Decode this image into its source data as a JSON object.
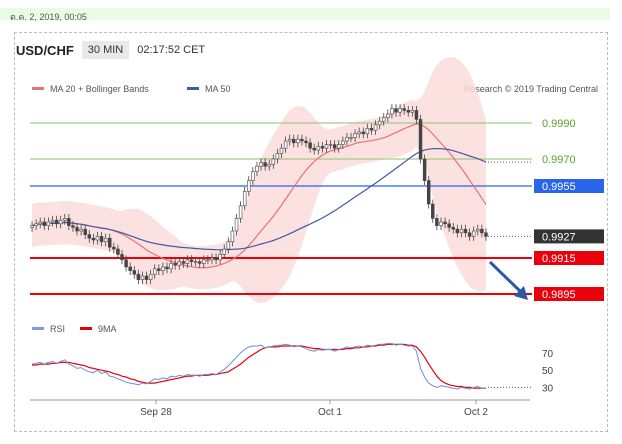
{
  "header": {
    "timestamp": "ต.ค. 2, 2019, 00:05",
    "pair": "USD/CHF",
    "interval": "30 MIN",
    "clock": "02:17:52 CET"
  },
  "legend": {
    "ma20": "MA 20 + Bollinger Bands",
    "ma50": "MA 50",
    "credit": "Research © 2019 Trading Central",
    "rsi": "RSI",
    "rsi_ma": "9MA"
  },
  "colors": {
    "candle": "#444444",
    "ma20": "#e57373",
    "ma50": "#3f5aa8",
    "bands": "#fcdcdc",
    "green": "#8cc26b",
    "blue": "#2965e8",
    "red": "#e8000a",
    "dark": "#333333",
    "arrow": "#2b5aa5"
  },
  "chart_data": {
    "type": "candlestick",
    "x_ticks": [
      "Sep 28",
      "Oct 1",
      "Oct 2"
    ],
    "y_range": [
      0.9885,
      1.0
    ],
    "levels": [
      {
        "value": 0.999,
        "label": "0.9990",
        "style": "green"
      },
      {
        "value": 0.997,
        "label": "0.9970",
        "style": "green"
      },
      {
        "value": 0.9955,
        "label": "0.9955",
        "style": "blue"
      },
      {
        "value": 0.9927,
        "label": "0.9927",
        "style": "current"
      },
      {
        "value": 0.9915,
        "label": "0.9915",
        "style": "red"
      },
      {
        "value": 0.9895,
        "label": "0.9895",
        "style": "red"
      }
    ],
    "close": [
      0.9933,
      0.9934,
      0.9935,
      0.9933,
      0.9935,
      0.9936,
      0.9934,
      0.9936,
      0.9937,
      0.9933,
      0.9932,
      0.993,
      0.9931,
      0.9928,
      0.9926,
      0.9925,
      0.9927,
      0.9924,
      0.9926,
      0.9921,
      0.992,
      0.9917,
      0.9914,
      0.991,
      0.9908,
      0.9906,
      0.9903,
      0.9905,
      0.9903,
      0.9906,
      0.9909,
      0.9908,
      0.991,
      0.9909,
      0.9912,
      0.9911,
      0.9913,
      0.9912,
      0.9914,
      0.9913,
      0.9913,
      0.9912,
      0.9914,
      0.9914,
      0.9915,
      0.9914,
      0.9917,
      0.992,
      0.9924,
      0.993,
      0.9937,
      0.9944,
      0.9952,
      0.9958,
      0.9963,
      0.9966,
      0.9968,
      0.9966,
      0.9967,
      0.997,
      0.9973,
      0.9976,
      0.998,
      0.9981,
      0.9979,
      0.9981,
      0.998,
      0.9979,
      0.9976,
      0.9975,
      0.9977,
      0.9976,
      0.9978,
      0.9978,
      0.9976,
      0.9978,
      0.998,
      0.9982,
      0.9982,
      0.9984,
      0.9985,
      0.9984,
      0.9987,
      0.9986,
      0.9989,
      0.9991,
      0.9993,
      0.9995,
      0.9998,
      0.9996,
      0.9998,
      0.9997,
      0.9996,
      0.9997,
      0.9992,
      0.997,
      0.9958,
      0.9945,
      0.9937,
      0.9933,
      0.9935,
      0.9934,
      0.9932,
      0.9931,
      0.9929,
      0.9931,
      0.9929,
      0.9927,
      0.993,
      0.9931,
      0.9929,
      0.9927
    ],
    "rsi": {
      "ticks": [
        70,
        50,
        30
      ],
      "range": [
        20,
        85
      ],
      "rsi": [
        57,
        58,
        59,
        57,
        59,
        60,
        58,
        60,
        62,
        57,
        55,
        52,
        53,
        50,
        48,
        47,
        50,
        46,
        48,
        43,
        42,
        40,
        38,
        36,
        35,
        34,
        33,
        35,
        34,
        37,
        40,
        39,
        41,
        40,
        43,
        42,
        44,
        43,
        45,
        44,
        44,
        43,
        45,
        45,
        46,
        45,
        48,
        51,
        55,
        60,
        65,
        70,
        74,
        77,
        78,
        78,
        79,
        76,
        77,
        78,
        79,
        79,
        80,
        79,
        77,
        78,
        77,
        75,
        73,
        72,
        74,
        73,
        74,
        74,
        72,
        74,
        75,
        77,
        76,
        77,
        78,
        77,
        79,
        78,
        79,
        80,
        80,
        81,
        81,
        79,
        80,
        79,
        78,
        78,
        72,
        52,
        42,
        35,
        32,
        30,
        32,
        31,
        30,
        29,
        28,
        30,
        29,
        28,
        30,
        31,
        29,
        29
      ],
      "rsi_ma": [
        56,
        56,
        57,
        57,
        57,
        58,
        58,
        59,
        59,
        59,
        58,
        57,
        56,
        55,
        53,
        52,
        51,
        50,
        49,
        48,
        46,
        45,
        43,
        42,
        40,
        39,
        37,
        36,
        35,
        35,
        35,
        36,
        37,
        38,
        39,
        40,
        41,
        42,
        43,
        43,
        44,
        44,
        44,
        44,
        45,
        45,
        46,
        47,
        48,
        51,
        54,
        57,
        61,
        65,
        68,
        71,
        74,
        76,
        77,
        77,
        77,
        78,
        78,
        78,
        78,
        78,
        78,
        77,
        76,
        75,
        75,
        74,
        74,
        74,
        74,
        74,
        74,
        75,
        75,
        76,
        76,
        77,
        77,
        78,
        78,
        79,
        79,
        80,
        80,
        80,
        80,
        80,
        79,
        79,
        77,
        72,
        65,
        57,
        50,
        43,
        38,
        35,
        33,
        32,
        31,
        31,
        30,
        30,
        29,
        29,
        29,
        29
      ]
    }
  }
}
